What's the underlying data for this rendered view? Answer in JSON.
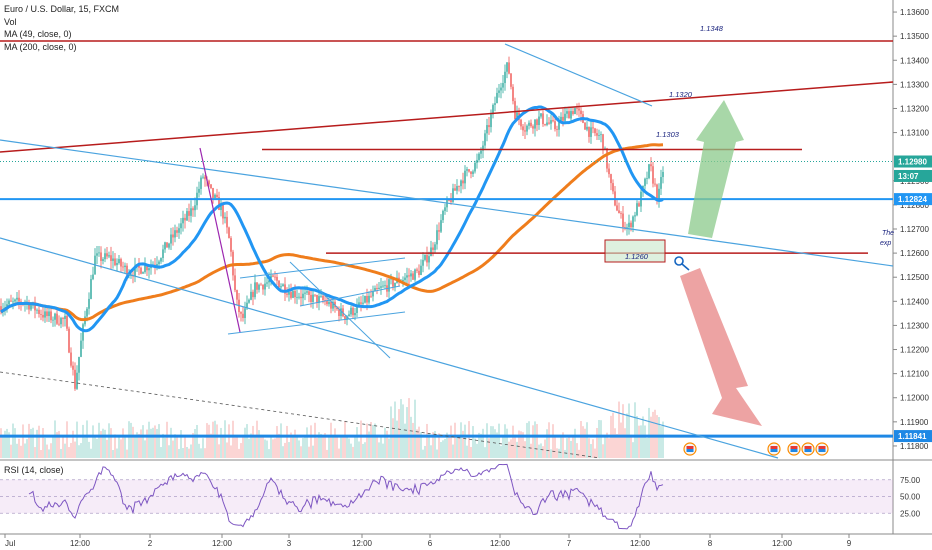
{
  "legend": {
    "title": "Euro / U.S. Dollar, 15, FXCM",
    "vol": "Vol",
    "ma49": "MA (49, close, 0)",
    "ma200": "MA (200, close, 0)"
  },
  "rsi_legend": "RSI (14, close)",
  "chart_data": {
    "type": "candlestick",
    "symbol": "EURUSD",
    "timeframe": "15",
    "source": "FXCM",
    "ylim": [
      1.1175,
      1.1365
    ],
    "y_ticks": [
      "1.13600",
      "1.13500",
      "1.13400",
      "1.13300",
      "1.13200",
      "1.13100",
      "1.12900",
      "1.12800",
      "1.12700",
      "1.12600",
      "1.12500",
      "1.12400",
      "1.12300",
      "1.12200",
      "1.12100",
      "1.12000",
      "1.11900",
      "1.11800"
    ],
    "x_ticks": [
      "Jul",
      "12:00",
      "2",
      "12:00",
      "3",
      "12:00",
      "6",
      "12:00",
      "7",
      "12:00",
      "8",
      "12:00",
      "9"
    ],
    "price_labels": [
      {
        "value": 1.1298,
        "text": "1.12980",
        "color": "#26a69a"
      },
      {
        "value": 1.1292,
        "text": "13:07",
        "color": "#26a69a"
      },
      {
        "value": 1.12824,
        "text": "1.12824",
        "color": "#2196f3"
      },
      {
        "value": 1.11841,
        "text": "1.11841",
        "color": "#1e88e5"
      }
    ],
    "level_annotations": [
      {
        "value": 1.1348,
        "text": "1.1348"
      },
      {
        "value": 1.132,
        "text": "1.1320"
      },
      {
        "value": 1.1303,
        "text": "1.1303"
      },
      {
        "value": 1.126,
        "text": "1.1260"
      }
    ],
    "text_notes": [
      "The",
      "exp"
    ],
    "ma_periods": [
      49,
      200
    ],
    "rsi": {
      "period": 14,
      "levels": [
        75,
        50,
        25
      ],
      "ticks": [
        "75.00",
        "50.00",
        "25.00"
      ]
    },
    "colors": {
      "up": "#26a69a",
      "down": "#ef5350",
      "ma49": "#2196f3",
      "ma200": "#ef7d1c",
      "rsi": "#7e57c2",
      "resistance": "#b71c1c",
      "trend": "#4aa3df",
      "bull_arrow": "#8bc98b",
      "bear_arrow": "#e88c8c"
    }
  }
}
